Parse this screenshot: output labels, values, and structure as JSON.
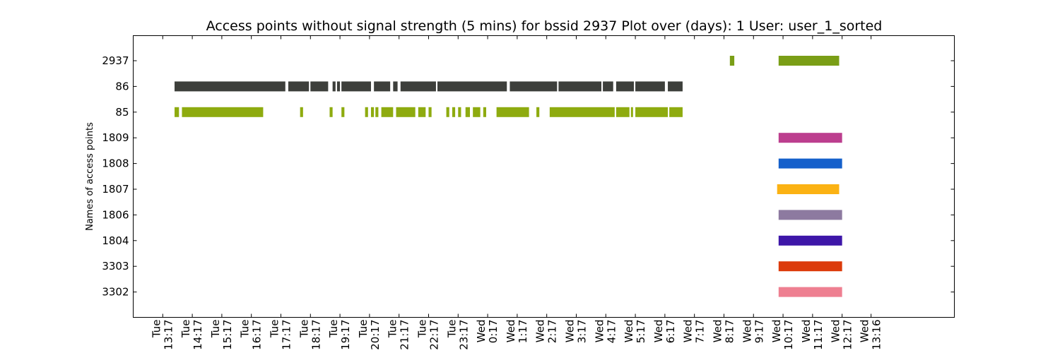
{
  "chart_data": {
    "type": "bar",
    "title": "Access points without signal strength (5 mins) for bssid 2937 Plot over (days): 1 User: user_1_sorted",
    "xlabel": "",
    "ylabel": "Names of access points",
    "grid": false,
    "x_unit": "hours since Tue 13:17",
    "xlim": [
      -1.0,
      26.8
    ],
    "x_ticks": [
      {
        "x": 0,
        "day": "Tue",
        "time": "13:17"
      },
      {
        "x": 1,
        "day": "Tue",
        "time": "14:17"
      },
      {
        "x": 2,
        "day": "Tue",
        "time": "15:17"
      },
      {
        "x": 3,
        "day": "Tue",
        "time": "16:17"
      },
      {
        "x": 4,
        "day": "Tue",
        "time": "17:17"
      },
      {
        "x": 5,
        "day": "Tue",
        "time": "18:17"
      },
      {
        "x": 6,
        "day": "Tue",
        "time": "19:17"
      },
      {
        "x": 7,
        "day": "Tue",
        "time": "20:17"
      },
      {
        "x": 8,
        "day": "Tue",
        "time": "21:17"
      },
      {
        "x": 9,
        "day": "Tue",
        "time": "22:17"
      },
      {
        "x": 10,
        "day": "Tue",
        "time": "23:17"
      },
      {
        "x": 11,
        "day": "Wed",
        "time": "0:17"
      },
      {
        "x": 12,
        "day": "Wed",
        "time": "1:17"
      },
      {
        "x": 13,
        "day": "Wed",
        "time": "2:17"
      },
      {
        "x": 14,
        "day": "Wed",
        "time": "3:17"
      },
      {
        "x": 15,
        "day": "Wed",
        "time": "4:17"
      },
      {
        "x": 16,
        "day": "Wed",
        "time": "5:17"
      },
      {
        "x": 17,
        "day": "Wed",
        "time": "6:17"
      },
      {
        "x": 18,
        "day": "Wed",
        "time": "7:17"
      },
      {
        "x": 19,
        "day": "Wed",
        "time": "8:17"
      },
      {
        "x": 20,
        "day": "Wed",
        "time": "9:17"
      },
      {
        "x": 21,
        "day": "Wed",
        "time": "10:17"
      },
      {
        "x": 22,
        "day": "Wed",
        "time": "11:17"
      },
      {
        "x": 23,
        "day": "Wed",
        "time": "12:17"
      },
      {
        "x": 23.98,
        "day": "Wed",
        "time": "13:16"
      }
    ],
    "categories": [
      "2937",
      "86",
      "85",
      "1809",
      "1808",
      "1807",
      "1806",
      "1804",
      "3303",
      "3302"
    ],
    "series": [
      {
        "category": "2937",
        "color": "#7a9e16",
        "segments": [
          [
            19.2,
            19.35
          ],
          [
            20.85,
            22.9
          ]
        ]
      },
      {
        "category": "86",
        "color": "#3d3f3b",
        "segments": [
          [
            0.4,
            4.15
          ],
          [
            4.25,
            4.95
          ],
          [
            5.0,
            5.6
          ],
          [
            5.75,
            5.85
          ],
          [
            5.9,
            6.0
          ],
          [
            6.05,
            7.05
          ],
          [
            7.15,
            7.7
          ],
          [
            7.8,
            7.95
          ],
          [
            8.05,
            9.25
          ],
          [
            9.3,
            11.65
          ],
          [
            11.75,
            13.35
          ],
          [
            13.4,
            14.85
          ],
          [
            14.9,
            15.25
          ],
          [
            15.35,
            15.95
          ],
          [
            16.0,
            17.0
          ],
          [
            17.1,
            17.6
          ]
        ]
      },
      {
        "category": "85",
        "color": "#8eab0f",
        "segments": [
          [
            0.4,
            0.55
          ],
          [
            0.65,
            3.4
          ],
          [
            4.65,
            4.75
          ],
          [
            5.65,
            5.75
          ],
          [
            6.05,
            6.15
          ],
          [
            6.85,
            6.95
          ],
          [
            7.05,
            7.15
          ],
          [
            7.2,
            7.3
          ],
          [
            7.4,
            7.8
          ],
          [
            7.9,
            8.55
          ],
          [
            8.65,
            8.9
          ],
          [
            9.0,
            9.1
          ],
          [
            9.6,
            9.7
          ],
          [
            9.8,
            9.9
          ],
          [
            10.0,
            10.1
          ],
          [
            10.25,
            10.4
          ],
          [
            10.5,
            10.75
          ],
          [
            10.85,
            10.95
          ],
          [
            11.3,
            12.4
          ],
          [
            12.65,
            12.75
          ],
          [
            13.1,
            15.3
          ],
          [
            15.35,
            15.8
          ],
          [
            15.85,
            15.9
          ],
          [
            16.0,
            17.1
          ],
          [
            17.15,
            17.6
          ]
        ]
      },
      {
        "category": "1809",
        "color": "#bc3e8e",
        "segments": [
          [
            20.85,
            23.0
          ]
        ]
      },
      {
        "category": "1808",
        "color": "#1560cb",
        "segments": [
          [
            20.85,
            23.0
          ]
        ]
      },
      {
        "category": "1807",
        "color": "#fbb213",
        "segments": [
          [
            20.8,
            22.9
          ]
        ]
      },
      {
        "category": "1806",
        "color": "#8d7aa0",
        "segments": [
          [
            20.85,
            23.0
          ]
        ]
      },
      {
        "category": "1804",
        "color": "#3d16a8",
        "segments": [
          [
            20.85,
            23.0
          ]
        ]
      },
      {
        "category": "3303",
        "color": "#dc3b0b",
        "segments": [
          [
            20.85,
            23.0
          ]
        ]
      },
      {
        "category": "3302",
        "color": "#ee7f91",
        "segments": [
          [
            20.85,
            23.0
          ]
        ]
      }
    ]
  }
}
